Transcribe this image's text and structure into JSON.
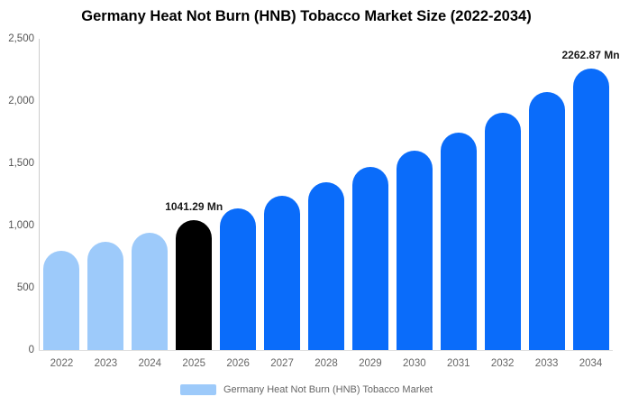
{
  "chart_data": {
    "type": "bar",
    "title": "Germany Heat Not Burn (HNB) Tobacco Market Size (2022-2034)",
    "categories": [
      "2022",
      "2023",
      "2024",
      "2025",
      "2026",
      "2027",
      "2028",
      "2029",
      "2030",
      "2031",
      "2032",
      "2033",
      "2034"
    ],
    "values": [
      800,
      870,
      945,
      1041.29,
      1135,
      1237,
      1349,
      1470,
      1603,
      1747,
      1905,
      2076,
      2262.87
    ],
    "bar_colors": [
      "#9DCAFA",
      "#9DCAFA",
      "#9DCAFA",
      "#000000",
      "#0A6CFA",
      "#0A6CFA",
      "#0A6CFA",
      "#0A6CFA",
      "#0A6CFA",
      "#0A6CFA",
      "#0A6CFA",
      "#0A6CFA",
      "#0A6CFA"
    ],
    "data_labels": {
      "2025": "1041.29 Mn",
      "2034": "2262.87 Mn"
    },
    "unit": "Mn",
    "xlabel": "",
    "ylabel": "",
    "ylim": [
      0,
      2500
    ],
    "y_ticks": [
      {
        "label": "2,500",
        "value": 2500
      },
      {
        "label": "2,000",
        "value": 2000
      },
      {
        "label": "1,500",
        "value": 1500
      },
      {
        "label": "1,000",
        "value": 1000
      },
      {
        "label": "500",
        "value": 500
      },
      {
        "label": "0",
        "value": 0
      }
    ],
    "grid": false,
    "legend_position": "bottom"
  },
  "legend": {
    "label": "Germany Heat Not Burn (HNB) Tobacco Market",
    "swatch_color": "#9DCAFA"
  },
  "colors": {
    "historical_bar": "#9DCAFA",
    "base_year_bar": "#000000",
    "forecast_bar": "#0A6CFA",
    "axis_line": "#CCCCCC",
    "tick_label": "#555555",
    "x_label": "#666666",
    "legend_text": "#666666",
    "data_label": "#1A1A1A",
    "title_text": "#000000"
  }
}
